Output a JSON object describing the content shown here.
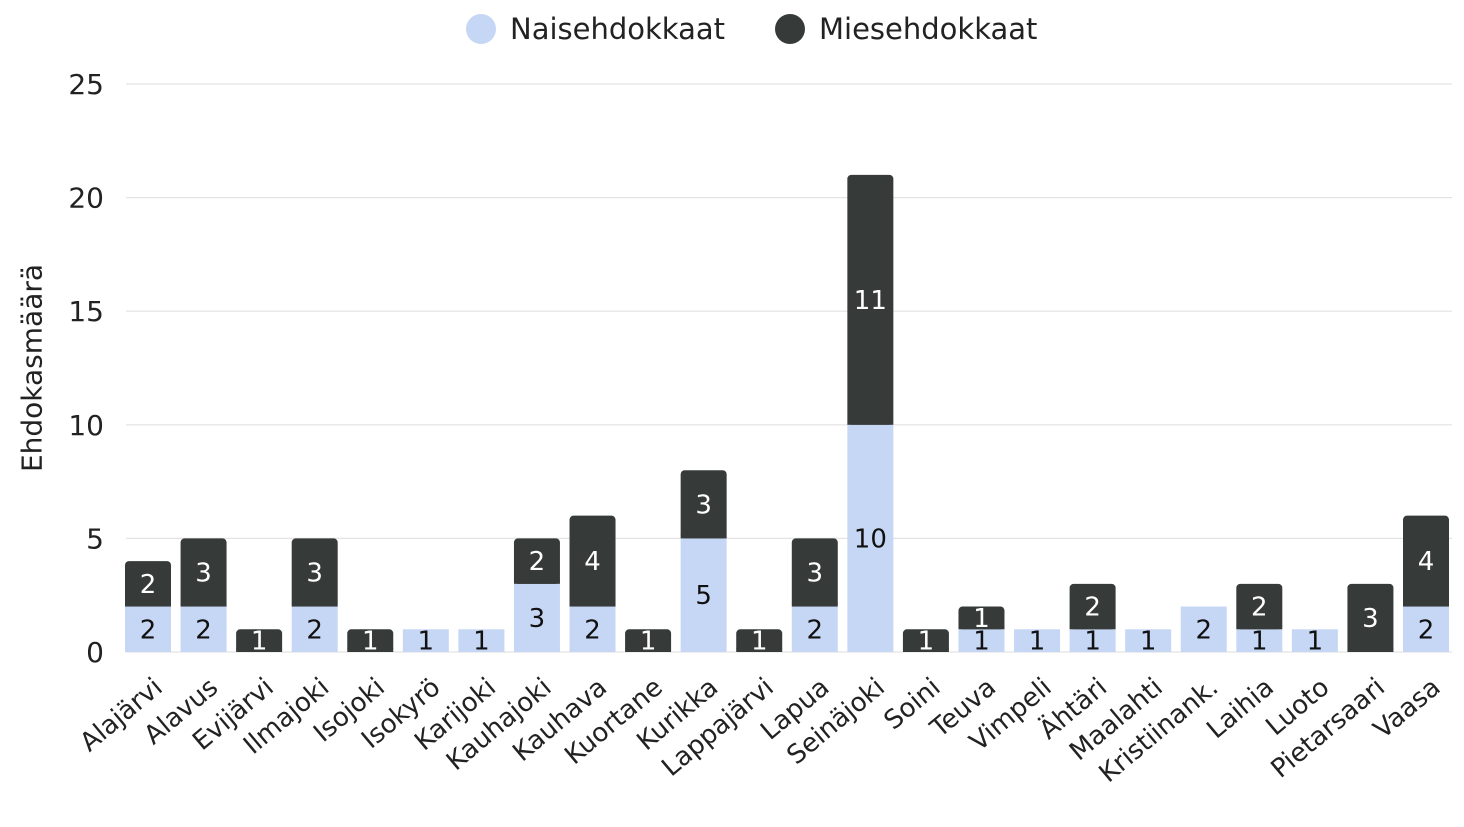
{
  "chart_data": {
    "type": "bar",
    "stacked": true,
    "title": "",
    "xlabel": "",
    "ylabel": "Ehdokasmäärä",
    "ylim": [
      0,
      25
    ],
    "yticks": [
      0,
      5,
      10,
      15,
      20,
      25
    ],
    "grid": true,
    "legend_position": "top-center",
    "categories": [
      "Alajärvi",
      "Alavus",
      "Evijärvi",
      "Ilmajoki",
      "Isojoki",
      "Isokyrö",
      "Karijoki",
      "Kauhajoki",
      "Kauhava",
      "Kuortane",
      "Kurikka",
      "Lappajärvi",
      "Lapua",
      "Seinäjoki",
      "Soini",
      "Teuva",
      "Vimpeli",
      "Ähtäri",
      "Maalahti",
      "Kristiinank.",
      "Laihia",
      "Luoto",
      "Pietarsaari",
      "Vaasa"
    ],
    "series": [
      {
        "name": "Naisehdokkaat",
        "color": "#c6d7f5",
        "values": [
          2,
          2,
          0,
          2,
          0,
          1,
          1,
          3,
          2,
          0,
          5,
          0,
          2,
          10,
          0,
          1,
          1,
          1,
          1,
          2,
          1,
          1,
          0,
          2
        ]
      },
      {
        "name": "Miesehdokkaat",
        "color": "#363b3a",
        "values": [
          2,
          3,
          1,
          3,
          1,
          0,
          0,
          2,
          4,
          1,
          3,
          1,
          3,
          11,
          1,
          1,
          0,
          2,
          0,
          0,
          2,
          0,
          3,
          4
        ]
      }
    ]
  }
}
